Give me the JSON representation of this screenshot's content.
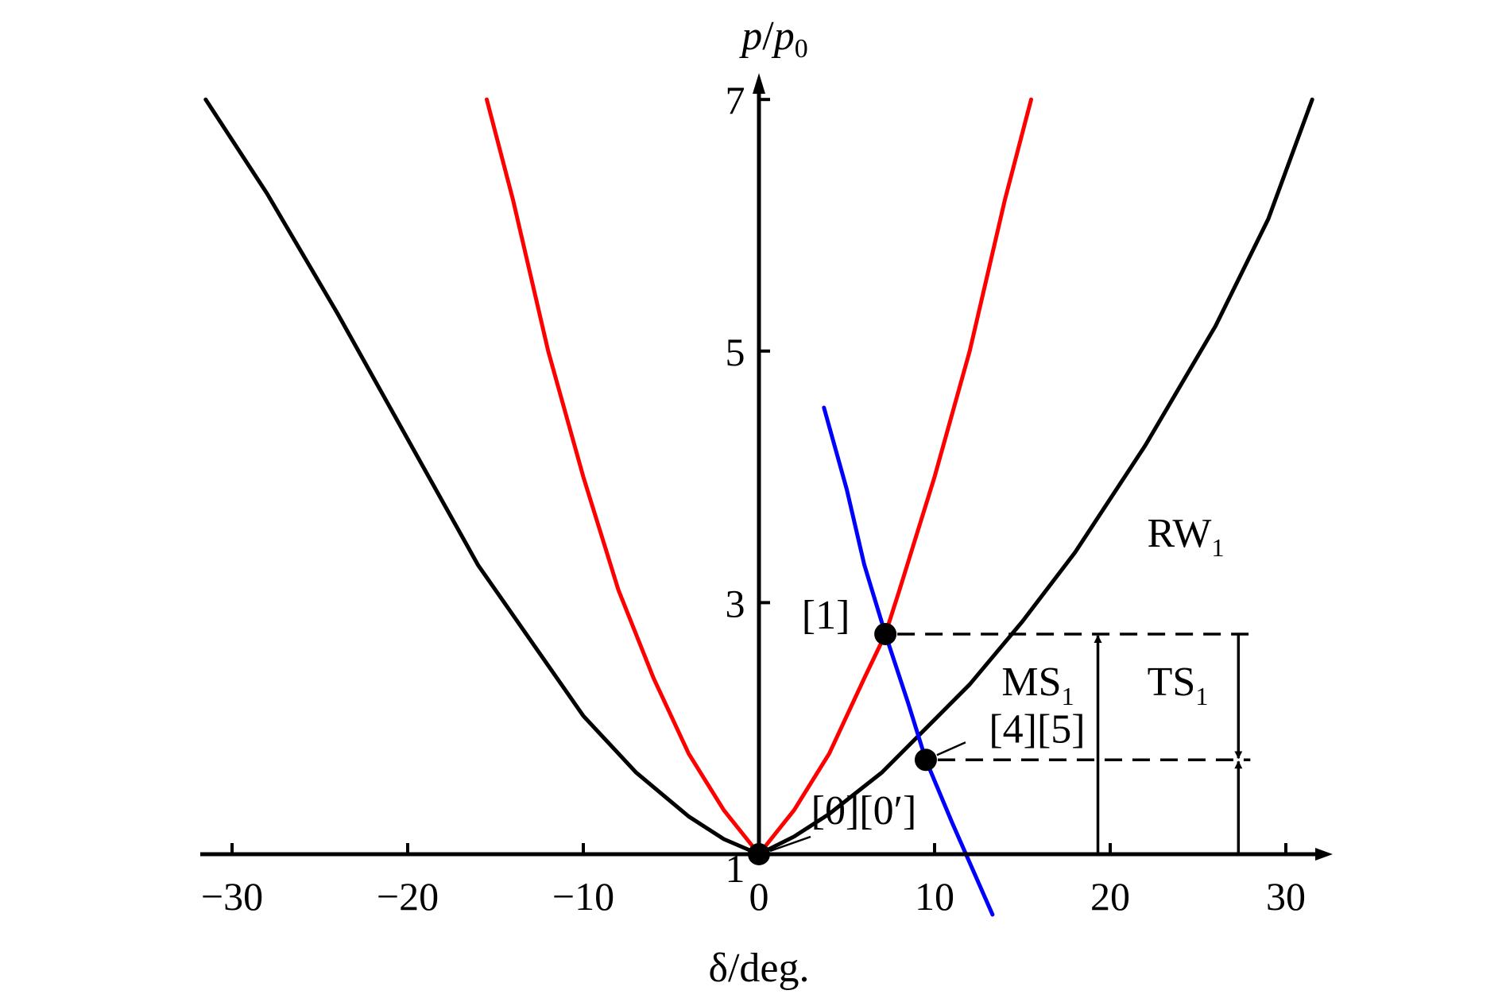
{
  "chart_data": {
    "type": "line",
    "title": "",
    "xlabel": "δ/deg.",
    "ylabel": "p/p0",
    "xlim": [
      -32,
      32
    ],
    "ylim": [
      1,
      7
    ],
    "x_ticks": [
      -30,
      -20,
      -10,
      0,
      10,
      20,
      30
    ],
    "x_tick_labels": [
      "−30",
      "−20",
      "−10",
      "0",
      "10",
      "20",
      "30"
    ],
    "y_ticks": [
      1,
      3,
      5,
      7
    ],
    "y_tick_labels": [
      "1",
      "3",
      "5",
      "7"
    ],
    "grid": false,
    "legend": "none",
    "series": [
      {
        "color": "#000000",
        "x": [
          -31.5,
          -28,
          -24,
          -20,
          -16,
          -13,
          -10,
          -7,
          -4,
          -2,
          0
        ],
        "y": [
          7.0,
          6.25,
          5.3,
          4.3,
          3.3,
          2.7,
          2.1,
          1.65,
          1.3,
          1.12,
          1.0
        ]
      },
      {
        "color": "#000000",
        "x": [
          0,
          2,
          4,
          7,
          9.5,
          12,
          15,
          18,
          22,
          26,
          29,
          31.5
        ],
        "y": [
          1.0,
          1.14,
          1.32,
          1.65,
          2.0,
          2.35,
          2.85,
          3.4,
          4.25,
          5.2,
          6.05,
          7.0
        ]
      },
      {
        "color": "#ff0000",
        "x": [
          -15.5,
          -14,
          -12,
          -10,
          -8,
          -6,
          -4,
          -2,
          0
        ],
        "y": [
          7.0,
          6.2,
          5.0,
          4.0,
          3.1,
          2.4,
          1.8,
          1.35,
          1.0
        ]
      },
      {
        "color": "#ff0000",
        "x": [
          0,
          2,
          4,
          6,
          7.2,
          8,
          10,
          12,
          14,
          15.5
        ],
        "y": [
          1.0,
          1.35,
          1.8,
          2.4,
          2.75,
          3.1,
          4.0,
          5.0,
          6.2,
          7.0
        ]
      },
      {
        "color": "#0000ff",
        "x": [
          3.7,
          5,
          6,
          7.2,
          8.5,
          9.5,
          11,
          13.3
        ],
        "y": [
          4.55,
          3.9,
          3.3,
          2.75,
          2.2,
          1.75,
          1.25,
          0.52
        ]
      }
    ],
    "points": [
      {
        "label": "[1]",
        "x": 7.2,
        "y": 2.75
      },
      {
        "label": "[4][5]",
        "x": 9.5,
        "y": 1.75
      },
      {
        "label": "[0][0′]",
        "x": 0,
        "y": 1.0
      }
    ],
    "annotations": [
      {
        "text": "RW",
        "sub": "1"
      },
      {
        "text": "MS",
        "sub": "1"
      },
      {
        "text": "TS",
        "sub": "1"
      }
    ],
    "reference_lines": {
      "levels": [
        2.75,
        1.75
      ],
      "ms_arrow_x": 19.3,
      "ts_arrow_x": 27.3
    }
  }
}
